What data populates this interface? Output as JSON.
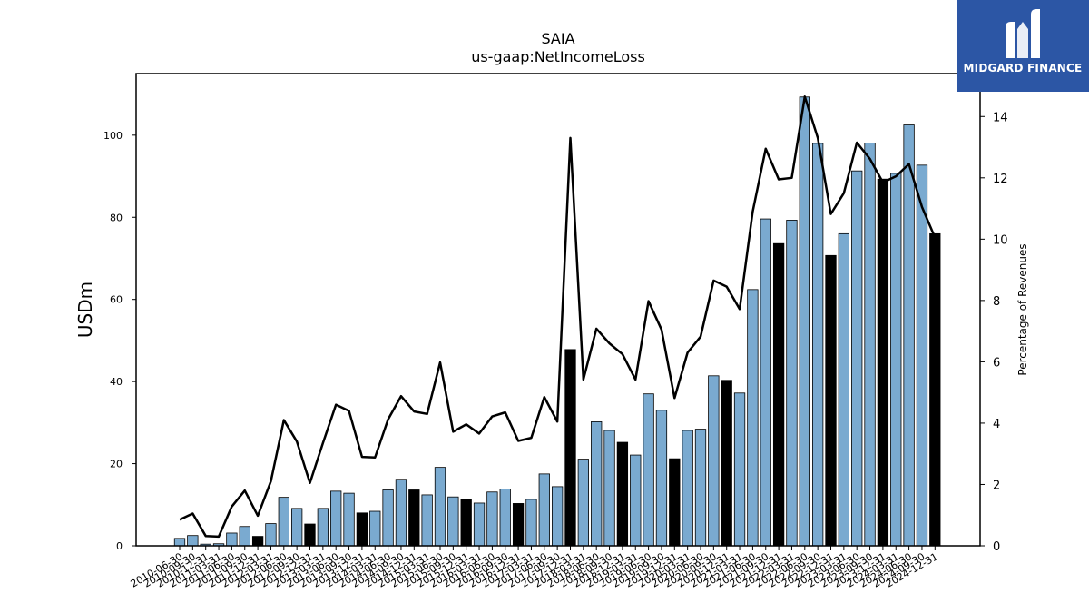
{
  "chart_data": {
    "type": "bar",
    "title": "SAIA",
    "subtitle": "us-gaap:NetIncomeLoss",
    "ylabel": "USDm",
    "y2label": "Percentage of Revenues",
    "ylim": [
      0,
      115
    ],
    "y2lim": [
      0,
      15.4
    ],
    "yticks": [
      0,
      20,
      40,
      60,
      80,
      100
    ],
    "y2ticks": [
      0,
      2,
      4,
      6,
      8,
      10,
      12,
      14
    ],
    "colors": {
      "quarter": "#7aaad0",
      "annual": "#000000",
      "line": "#000000"
    },
    "categories": [
      "2010-06-30",
      "2010-09-30",
      "2010-12-31",
      "2011-03-31",
      "2011-06-30",
      "2011-09-30",
      "2011-12-31",
      "2012-03-31",
      "2012-06-30",
      "2012-09-30",
      "2012-12-31",
      "2013-03-31",
      "2013-06-30",
      "2013-09-30",
      "2013-12-31",
      "2014-03-31",
      "2014-06-30",
      "2014-09-30",
      "2014-12-31",
      "2015-03-31",
      "2015-06-30",
      "2015-09-30",
      "2015-12-31",
      "2016-03-31",
      "2016-06-30",
      "2016-09-30",
      "2016-12-31",
      "2017-03-31",
      "2017-06-30",
      "2017-09-30",
      "2017-12-31",
      "2018-03-31",
      "2018-06-30",
      "2018-09-30",
      "2018-12-31",
      "2019-03-31",
      "2019-06-30",
      "2019-09-30",
      "2019-12-31",
      "2020-03-31",
      "2020-06-30",
      "2020-09-30",
      "2020-12-31",
      "2021-03-31",
      "2021-06-30",
      "2021-09-30",
      "2021-12-31",
      "2022-03-31",
      "2022-06-30",
      "2022-09-30",
      "2022-12-31",
      "2023-03-31",
      "2023-06-30",
      "2023-09-30",
      "2023-12-31",
      "2024-03-31",
      "2024-06-30",
      "2024-09-30",
      "2024-12-31"
    ],
    "series": [
      {
        "values": [
          1.8,
          2.5,
          0.4,
          0.5,
          3.1,
          4.7,
          2.3,
          5.4,
          11.8,
          9.1,
          5.3,
          9.1,
          13.3,
          12.8,
          8.0,
          8.4,
          13.6,
          16.2,
          13.6,
          12.4,
          19.1,
          11.9,
          11.4,
          10.4,
          13.1,
          13.8,
          10.3,
          11.3,
          17.5,
          14.4,
          47.8,
          21.1,
          30.2,
          28.1,
          25.2,
          22.1,
          37.0,
          33.0,
          21.2,
          28.1,
          28.4,
          41.4,
          40.3,
          37.2,
          62.4,
          79.6,
          73.6,
          79.3,
          109.3,
          98.0,
          70.7,
          76.0,
          91.3,
          98.1,
          89.3,
          90.7,
          102.5,
          92.7,
          76.0
        ]
      },
      {
        "values": [
          0.85,
          1.05,
          0.32,
          0.3,
          1.28,
          1.8,
          0.98,
          2.1,
          4.1,
          3.4,
          2.05,
          3.35,
          4.6,
          4.4,
          2.9,
          2.88,
          4.12,
          4.88,
          4.38,
          4.3,
          5.98,
          3.72,
          3.96,
          3.66,
          4.22,
          4.35,
          3.42,
          3.52,
          4.85,
          4.05,
          13.3,
          5.42,
          7.08,
          6.6,
          6.25,
          5.42,
          7.98,
          7.05,
          4.82,
          6.3,
          6.82,
          8.65,
          8.45,
          7.72,
          10.9,
          12.95,
          11.95,
          12.0,
          14.65,
          13.3,
          10.82,
          11.5,
          13.15,
          12.62,
          11.85,
          12.05,
          12.45,
          11.05,
          10.05
        ]
      }
    ],
    "annual_flags": [
      0,
      0,
      0,
      0,
      0,
      0,
      1,
      0,
      0,
      0,
      1,
      0,
      0,
      0,
      1,
      0,
      0,
      0,
      1,
      0,
      0,
      0,
      1,
      0,
      0,
      0,
      1,
      0,
      0,
      0,
      1,
      0,
      0,
      0,
      1,
      0,
      0,
      0,
      1,
      0,
      0,
      0,
      1,
      0,
      0,
      0,
      1,
      0,
      0,
      0,
      1,
      0,
      0,
      0,
      1,
      0,
      0,
      0,
      1
    ]
  },
  "brand": {
    "name": "MIDGARD FINANCE"
  }
}
